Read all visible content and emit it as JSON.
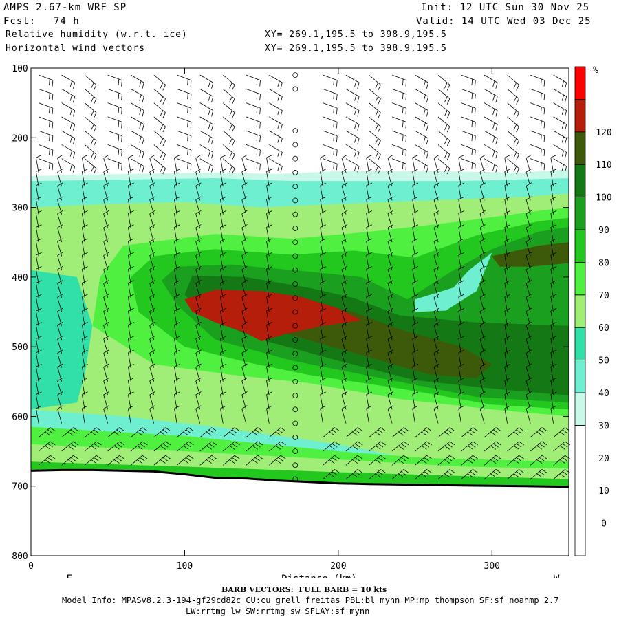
{
  "header": {
    "model": "AMPS 2.67-km WRF SP",
    "init": "Init: 12 UTC Sun 30 Nov 25",
    "fcst_label": "Fcst:",
    "fcst_value": "74 h",
    "valid": "Valid: 14 UTC Wed 03 Dec 25",
    "field1": "Relative humidity (w.r.t. ice)",
    "field2": "Horizontal wind vectors",
    "xy1": "XY= 269.1,195.5 to 398.9,195.5",
    "xy2": "XY= 269.1,195.5 to 398.9,195.5"
  },
  "footer": {
    "barb_note": "BARB VECTORS:  FULL BARB = 10 kts",
    "model_info": "Model Info: MPASv8.2.3-194-gf29cd82c CU:cu_grell_freitas PBL:bl_mynn MP:mp_thompson SF:sf_noahmp 2.7",
    "model_info2": "LW:rrtmg_lw SW:rrtmg_sw SFLAY:sf_mynn"
  },
  "chart_data": {
    "type": "heatmap",
    "title": "Relative humidity (w.r.t. ice)",
    "xlabel": "Distance (km)",
    "ylabel": "",
    "x_side_labels": {
      "left": "E",
      "right": "W"
    },
    "xlim": [
      0,
      350
    ],
    "ylim": [
      800,
      100
    ],
    "x_ticks": [
      0,
      100,
      200,
      300
    ],
    "y_ticks": [
      100,
      200,
      300,
      400,
      500,
      600,
      700,
      800
    ],
    "colorbar": {
      "unit": "%",
      "ticks": [
        0,
        10,
        20,
        30,
        40,
        50,
        60,
        70,
        80,
        90,
        100,
        110,
        120
      ],
      "levels": [
        {
          "min": -10,
          "max": 30,
          "color": "#ffffff"
        },
        {
          "min": 30,
          "max": 40,
          "color": "#c8f8e8"
        },
        {
          "min": 40,
          "max": 50,
          "color": "#6ef0d0"
        },
        {
          "min": 50,
          "max": 60,
          "color": "#30e0a8"
        },
        {
          "min": 60,
          "max": 70,
          "color": "#a0ee78"
        },
        {
          "min": 70,
          "max": 80,
          "color": "#50f040"
        },
        {
          "min": 80,
          "max": 90,
          "color": "#22c81e"
        },
        {
          "min": 90,
          "max": 100,
          "color": "#1aa01e"
        },
        {
          "min": 100,
          "max": 110,
          "color": "#147814"
        },
        {
          "min": 110,
          "max": 120,
          "color": "#3c5a0a"
        },
        {
          "min": 120,
          "max": 130,
          "color": "#b41e0a"
        },
        {
          "min": 130,
          "max": 140,
          "color": "#ff0000"
        }
      ]
    },
    "regions": [
      {
        "level": "30-40",
        "points": [
          [
            0,
            255
          ],
          [
            60,
            252
          ],
          [
            120,
            250
          ],
          [
            160,
            252
          ],
          [
            200,
            248
          ],
          [
            260,
            248
          ],
          [
            320,
            250
          ],
          [
            350,
            245
          ],
          [
            350,
            270
          ],
          [
            300,
            268
          ],
          [
            240,
            266
          ],
          [
            180,
            270
          ],
          [
            120,
            266
          ],
          [
            60,
            268
          ],
          [
            0,
            268
          ]
        ]
      },
      {
        "level": "40-50",
        "points": [
          [
            0,
            262
          ],
          [
            60,
            260
          ],
          [
            120,
            258
          ],
          [
            170,
            262
          ],
          [
            220,
            262
          ],
          [
            280,
            262
          ],
          [
            350,
            258
          ],
          [
            350,
            680
          ],
          [
            0,
            680
          ]
        ]
      },
      {
        "level": "60-70",
        "points": [
          [
            0,
            300
          ],
          [
            50,
            295
          ],
          [
            100,
            292
          ],
          [
            150,
            300
          ],
          [
            200,
            295
          ],
          [
            260,
            290
          ],
          [
            320,
            285
          ],
          [
            350,
            280
          ],
          [
            350,
            680
          ],
          [
            290,
            680
          ],
          [
            200,
            640
          ],
          [
            120,
            615
          ],
          [
            60,
            600
          ],
          [
            0,
            590
          ]
        ]
      },
      {
        "level": "50-60",
        "points": [
          [
            0,
            390
          ],
          [
            30,
            400
          ],
          [
            40,
            470
          ],
          [
            35,
            540
          ],
          [
            30,
            580
          ],
          [
            0,
            590
          ]
        ]
      },
      {
        "level": "70-80",
        "points": [
          [
            60,
            355
          ],
          [
            120,
            338
          ],
          [
            170,
            345
          ],
          [
            220,
            335
          ],
          [
            280,
            320
          ],
          [
            330,
            305
          ],
          [
            350,
            300
          ],
          [
            350,
            600
          ],
          [
            300,
            590
          ],
          [
            240,
            575
          ],
          [
            180,
            552
          ],
          [
            130,
            540
          ],
          [
            80,
            525
          ],
          [
            40,
            470
          ],
          [
            45,
            400
          ]
        ]
      },
      {
        "level": "80-90",
        "points": [
          [
            80,
            370
          ],
          [
            120,
            360
          ],
          [
            170,
            368
          ],
          [
            210,
            362
          ],
          [
            250,
            372
          ],
          [
            290,
            340
          ],
          [
            330,
            320
          ],
          [
            350,
            315
          ],
          [
            350,
            590
          ],
          [
            300,
            583
          ],
          [
            240,
            560
          ],
          [
            180,
            540
          ],
          [
            140,
            522
          ],
          [
            100,
            500
          ],
          [
            70,
            450
          ],
          [
            65,
            400
          ]
        ]
      },
      {
        "level": "90-100",
        "points": [
          [
            95,
            385
          ],
          [
            130,
            382
          ],
          [
            180,
            392
          ],
          [
            215,
            400
          ],
          [
            245,
            432
          ],
          [
            275,
            390
          ],
          [
            300,
            360
          ],
          [
            330,
            335
          ],
          [
            350,
            328
          ],
          [
            350,
            580
          ],
          [
            290,
            572
          ],
          [
            230,
            546
          ],
          [
            170,
            520
          ],
          [
            120,
            490
          ],
          [
            95,
            440
          ],
          [
            85,
            405
          ]
        ]
      },
      {
        "level": "100-110",
        "points": [
          [
            105,
            398
          ],
          [
            140,
            400
          ],
          [
            180,
            415
          ],
          [
            210,
            430
          ],
          [
            240,
            455
          ],
          [
            290,
            465
          ],
          [
            350,
            470
          ],
          [
            350,
            570
          ],
          [
            300,
            560
          ],
          [
            250,
            548
          ],
          [
            200,
            520
          ],
          [
            150,
            490
          ],
          [
            115,
            460
          ],
          [
            100,
            425
          ]
        ]
      },
      {
        "level": "110-120",
        "points": [
          [
            130,
            420
          ],
          [
            170,
            430
          ],
          [
            210,
            450
          ],
          [
            240,
            475
          ],
          [
            280,
            500
          ],
          [
            300,
            525
          ],
          [
            290,
            545
          ],
          [
            260,
            540
          ],
          [
            220,
            515
          ],
          [
            180,
            490
          ],
          [
            150,
            470
          ],
          [
            125,
            445
          ]
        ]
      },
      {
        "level": "110-120",
        "points": [
          [
            300,
            370
          ],
          [
            330,
            355
          ],
          [
            350,
            350
          ],
          [
            350,
            380
          ],
          [
            325,
            385
          ],
          [
            305,
            385
          ]
        ]
      },
      {
        "level": "120-130",
        "points": [
          [
            100,
            432
          ],
          [
            120,
            418
          ],
          [
            150,
            420
          ],
          [
            175,
            428
          ],
          [
            200,
            445
          ],
          [
            215,
            462
          ],
          [
            190,
            470
          ],
          [
            165,
            482
          ],
          [
            150,
            492
          ],
          [
            140,
            480
          ],
          [
            120,
            465
          ],
          [
            105,
            450
          ]
        ]
      },
      {
        "level": "40-50",
        "points": [
          [
            250,
            432
          ],
          [
            275,
            415
          ],
          [
            285,
            390
          ],
          [
            300,
            365
          ],
          [
            290,
            420
          ],
          [
            270,
            448
          ],
          [
            250,
            450
          ]
        ]
      },
      {
        "level": "70-80",
        "points": [
          [
            0,
            615
          ],
          [
            100,
            628
          ],
          [
            200,
            650
          ],
          [
            260,
            660
          ],
          [
            350,
            665
          ],
          [
            350,
            685
          ],
          [
            0,
            685
          ]
        ]
      },
      {
        "level": "60-70",
        "points": [
          [
            0,
            640
          ],
          [
            100,
            650
          ],
          [
            200,
            662
          ],
          [
            280,
            672
          ],
          [
            350,
            675
          ],
          [
            350,
            690
          ],
          [
            0,
            690
          ]
        ]
      },
      {
        "level": "80-90",
        "points": [
          [
            0,
            665
          ],
          [
            100,
            672
          ],
          [
            200,
            680
          ],
          [
            350,
            690
          ],
          [
            350,
            700
          ],
          [
            0,
            690
          ]
        ]
      }
    ],
    "terrain": [
      [
        0,
        678
      ],
      [
        20,
        677
      ],
      [
        40,
        677
      ],
      [
        60,
        678
      ],
      [
        80,
        679
      ],
      [
        100,
        683
      ],
      [
        120,
        688
      ],
      [
        140,
        689
      ],
      [
        160,
        692
      ],
      [
        180,
        694
      ],
      [
        200,
        696
      ],
      [
        220,
        697
      ],
      [
        250,
        698
      ],
      [
        280,
        699
      ],
      [
        320,
        700
      ],
      [
        350,
        701
      ]
    ],
    "wind_barbs": {
      "x": [
        5,
        20,
        35,
        50,
        65,
        80,
        95,
        110,
        125,
        140,
        155,
        172,
        190,
        205,
        220,
        235,
        250,
        265,
        280,
        295,
        310,
        325,
        340
      ],
      "p": [
        110,
        130,
        150,
        170,
        190,
        210,
        230,
        250,
        270,
        290,
        310,
        330,
        350,
        370,
        390,
        410,
        430,
        450,
        470,
        490,
        510,
        530,
        550,
        570,
        590,
        610,
        630,
        650,
        670,
        690
      ],
      "calm_column_x": 172
    }
  }
}
